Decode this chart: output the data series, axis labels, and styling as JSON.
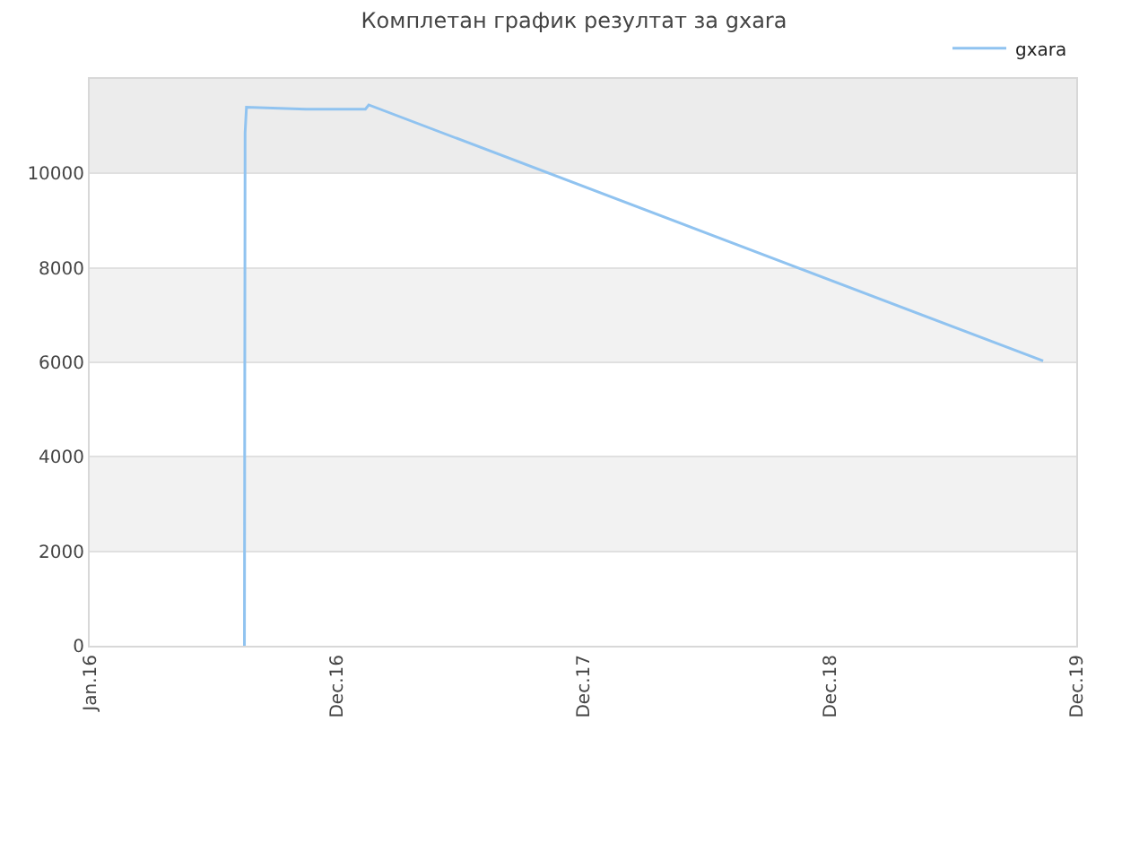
{
  "chart_data": {
    "type": "line",
    "title": "Комплетан график резултат за gxara",
    "x": [
      "2016-08-17",
      "2016-08-18",
      "2016-08-20",
      "2016-11-16",
      "2017-02-12",
      "2017-02-17",
      "2019-11-12"
    ],
    "series": [
      {
        "name": "gxara",
        "color": "#90c3f0",
        "values": [
          0,
          10860,
          11400,
          11360,
          11360,
          11450,
          6030
        ]
      }
    ],
    "xlim": [
      "2016-01-01",
      "2019-12-31"
    ],
    "xticks": [
      {
        "value": "2016-01-01",
        "label": "Jan.16"
      },
      {
        "value": "2016-12-31",
        "label": "Dec.16"
      },
      {
        "value": "2017-12-31",
        "label": "Dec.17"
      },
      {
        "value": "2018-12-31",
        "label": "Dec.18"
      },
      {
        "value": "2019-12-31",
        "label": "Dec.19"
      }
    ],
    "ylim": [
      0,
      12000
    ],
    "yticks": [
      0,
      2000,
      4000,
      6000,
      8000,
      10000
    ],
    "bands": [
      {
        "axis": "y",
        "from": 2000,
        "to": 4000,
        "color": "#f2f2f2"
      },
      {
        "axis": "y",
        "from": 6000,
        "to": 8000,
        "color": "#f2f2f2"
      },
      {
        "axis": "y",
        "from": 10000,
        "to": 12000,
        "color": "#ececec"
      }
    ],
    "grid": "y",
    "legend": "top right",
    "marker": "none",
    "line_style": "solid"
  }
}
